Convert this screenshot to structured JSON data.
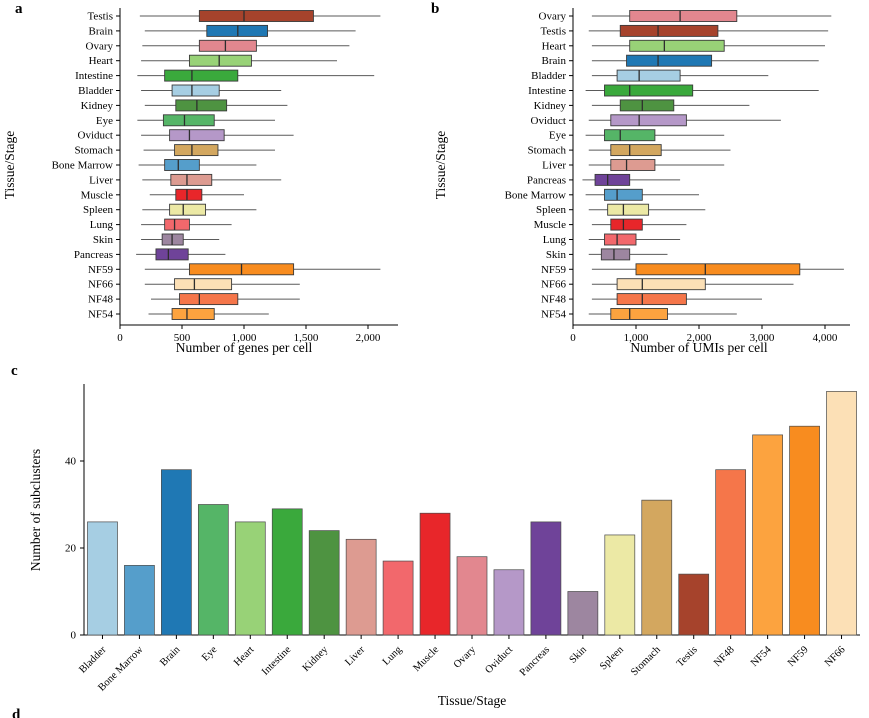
{
  "figure": {
    "panel_letters": {
      "a": "a",
      "b": "b",
      "c": "c",
      "d_partial": "d"
    }
  },
  "chart_data": [
    {
      "panel": "a",
      "type": "boxplot-horizontal",
      "xlabel": "Number of genes per cell",
      "ylabel": "Tissue/Stage",
      "xlim": [
        0,
        2200
      ],
      "x_ticks": [
        0,
        500,
        1000,
        1500,
        2000
      ],
      "x_tick_labels": [
        "0",
        "500",
        "1,000",
        "1,500",
        "2,000"
      ],
      "grid": false,
      "legend": "none",
      "series": [
        {
          "name": "Testis",
          "color": "#a6432c",
          "whisker_low": 160,
          "q1": 640,
          "median": 1000,
          "q3": 1560,
          "whisker_high": 2100
        },
        {
          "name": "Brain",
          "color": "#1f78b4",
          "whisker_low": 200,
          "q1": 700,
          "median": 950,
          "q3": 1190,
          "whisker_high": 1900
        },
        {
          "name": "Ovary",
          "color": "#e2878f",
          "whisker_low": 180,
          "q1": 640,
          "median": 850,
          "q3": 1100,
          "whisker_high": 1850
        },
        {
          "name": "Heart",
          "color": "#98d277",
          "whisker_low": 170,
          "q1": 560,
          "median": 800,
          "q3": 1060,
          "whisker_high": 1750
        },
        {
          "name": "Intestine",
          "color": "#3aa93c",
          "whisker_low": 140,
          "q1": 360,
          "median": 580,
          "q3": 950,
          "whisker_high": 2050
        },
        {
          "name": "Bladder",
          "color": "#a6cee3",
          "whisker_low": 170,
          "q1": 420,
          "median": 580,
          "q3": 800,
          "whisker_high": 1300
        },
        {
          "name": "Kidney",
          "color": "#4e9341",
          "whisker_low": 200,
          "q1": 450,
          "median": 620,
          "q3": 860,
          "whisker_high": 1350
        },
        {
          "name": "Eye",
          "color": "#55b567",
          "whisker_low": 140,
          "q1": 350,
          "median": 520,
          "q3": 760,
          "whisker_high": 1250
        },
        {
          "name": "Oviduct",
          "color": "#b598c8",
          "whisker_low": 170,
          "q1": 400,
          "median": 560,
          "q3": 840,
          "whisker_high": 1400
        },
        {
          "name": "Stomach",
          "color": "#d3a75f",
          "whisker_low": 190,
          "q1": 440,
          "median": 580,
          "q3": 790,
          "whisker_high": 1250
        },
        {
          "name": "Bone Marrow",
          "color": "#559ecb",
          "whisker_low": 150,
          "q1": 360,
          "median": 470,
          "q3": 640,
          "whisker_high": 1100
        },
        {
          "name": "Liver",
          "color": "#dd9b91",
          "whisker_low": 180,
          "q1": 410,
          "median": 540,
          "q3": 740,
          "whisker_high": 1300
        },
        {
          "name": "Muscle",
          "color": "#e8262a",
          "whisker_low": 240,
          "q1": 450,
          "median": 540,
          "q3": 660,
          "whisker_high": 1000
        },
        {
          "name": "Spleen",
          "color": "#ece9a5",
          "whisker_low": 180,
          "q1": 400,
          "median": 510,
          "q3": 690,
          "whisker_high": 1100
        },
        {
          "name": "Lung",
          "color": "#f2686c",
          "whisker_low": 170,
          "q1": 360,
          "median": 440,
          "q3": 560,
          "whisker_high": 900
        },
        {
          "name": "Skin",
          "color": "#9d86a0",
          "whisker_low": 170,
          "q1": 340,
          "median": 420,
          "q3": 510,
          "whisker_high": 800
        },
        {
          "name": "Pancreas",
          "color": "#6f4399",
          "whisker_low": 130,
          "q1": 290,
          "median": 390,
          "q3": 550,
          "whisker_high": 850
        },
        {
          "name": "NF59",
          "color": "#f88c1f",
          "whisker_low": 200,
          "q1": 560,
          "median": 980,
          "q3": 1400,
          "whisker_high": 2100
        },
        {
          "name": "NF66",
          "color": "#fce0b6",
          "whisker_low": 200,
          "q1": 440,
          "median": 600,
          "q3": 900,
          "whisker_high": 1450
        },
        {
          "name": "NF48",
          "color": "#f5764a",
          "whisker_low": 250,
          "q1": 480,
          "median": 640,
          "q3": 950,
          "whisker_high": 1450
        },
        {
          "name": "NF54",
          "color": "#fca33f",
          "whisker_low": 230,
          "q1": 420,
          "median": 540,
          "q3": 760,
          "whisker_high": 1200
        }
      ]
    },
    {
      "panel": "b",
      "type": "boxplot-horizontal",
      "xlabel": "Number of UMIs per cell",
      "ylabel": "Tissue/Stage",
      "xlim": [
        0,
        4400
      ],
      "x_ticks": [
        0,
        1000,
        2000,
        3000,
        4000
      ],
      "x_tick_labels": [
        "0",
        "1,000",
        "2,000",
        "3,000",
        "4,000"
      ],
      "grid": false,
      "legend": "none",
      "series": [
        {
          "name": "Ovary",
          "color": "#e2878f",
          "whisker_low": 300,
          "q1": 900,
          "median": 1700,
          "q3": 2600,
          "whisker_high": 4100
        },
        {
          "name": "Testis",
          "color": "#a6432c",
          "whisker_low": 250,
          "q1": 750,
          "median": 1350,
          "q3": 2300,
          "whisker_high": 4050
        },
        {
          "name": "Heart",
          "color": "#98d277",
          "whisker_low": 300,
          "q1": 900,
          "median": 1450,
          "q3": 2400,
          "whisker_high": 4000
        },
        {
          "name": "Brain",
          "color": "#1f78b4",
          "whisker_low": 300,
          "q1": 850,
          "median": 1350,
          "q3": 2200,
          "whisker_high": 3900
        },
        {
          "name": "Bladder",
          "color": "#a6cee3",
          "whisker_low": 300,
          "q1": 700,
          "median": 1050,
          "q3": 1700,
          "whisker_high": 3100
        },
        {
          "name": "Intestine",
          "color": "#3aa93c",
          "whisker_low": 200,
          "q1": 500,
          "median": 900,
          "q3": 1900,
          "whisker_high": 3900
        },
        {
          "name": "Kidney",
          "color": "#4e9341",
          "whisker_low": 300,
          "q1": 750,
          "median": 1100,
          "q3": 1600,
          "whisker_high": 2800
        },
        {
          "name": "Oviduct",
          "color": "#b598c8",
          "whisker_low": 250,
          "q1": 600,
          "median": 1050,
          "q3": 1800,
          "whisker_high": 3300
        },
        {
          "name": "Eye",
          "color": "#55b567",
          "whisker_low": 200,
          "q1": 500,
          "median": 750,
          "q3": 1300,
          "whisker_high": 2400
        },
        {
          "name": "Stomach",
          "color": "#d3a75f",
          "whisker_low": 250,
          "q1": 600,
          "median": 900,
          "q3": 1400,
          "whisker_high": 2500
        },
        {
          "name": "Liver",
          "color": "#dd9b91",
          "whisker_low": 250,
          "q1": 600,
          "median": 850,
          "q3": 1300,
          "whisker_high": 2400
        },
        {
          "name": "Pancreas",
          "color": "#6f4399",
          "whisker_low": 150,
          "q1": 350,
          "median": 550,
          "q3": 900,
          "whisker_high": 1700
        },
        {
          "name": "Bone Marrow",
          "color": "#559ecb",
          "whisker_low": 200,
          "q1": 500,
          "median": 700,
          "q3": 1100,
          "whisker_high": 2000
        },
        {
          "name": "Spleen",
          "color": "#ece9a5",
          "whisker_low": 250,
          "q1": 550,
          "median": 800,
          "q3": 1200,
          "whisker_high": 2100
        },
        {
          "name": "Muscle",
          "color": "#e8262a",
          "whisker_low": 300,
          "q1": 600,
          "median": 800,
          "q3": 1100,
          "whisker_high": 1800
        },
        {
          "name": "Lung",
          "color": "#f2686c",
          "whisker_low": 250,
          "q1": 500,
          "median": 700,
          "q3": 1000,
          "whisker_high": 1700
        },
        {
          "name": "Skin",
          "color": "#9d86a0",
          "whisker_low": 250,
          "q1": 450,
          "median": 650,
          "q3": 900,
          "whisker_high": 1500
        },
        {
          "name": "NF59",
          "color": "#f88c1f",
          "whisker_low": 300,
          "q1": 1000,
          "median": 2100,
          "q3": 3600,
          "whisker_high": 4300
        },
        {
          "name": "NF66",
          "color": "#fce0b6",
          "whisker_low": 300,
          "q1": 700,
          "median": 1100,
          "q3": 2100,
          "whisker_high": 3500
        },
        {
          "name": "NF48",
          "color": "#f5764a",
          "whisker_low": 300,
          "q1": 700,
          "median": 1100,
          "q3": 1800,
          "whisker_high": 3000
        },
        {
          "name": "NF54",
          "color": "#fca33f",
          "whisker_low": 250,
          "q1": 600,
          "median": 900,
          "q3": 1500,
          "whisker_high": 2600
        }
      ]
    },
    {
      "panel": "c",
      "type": "bar",
      "xlabel": "Tissue/Stage",
      "ylabel": "Number of subclusters",
      "ylim": [
        0,
        58
      ],
      "y_ticks": [
        0,
        20,
        40
      ],
      "y_tick_labels": [
        "0",
        "20",
        "40"
      ],
      "grid": false,
      "legend": "none",
      "categories": [
        "Bladder",
        "Bone Marrow",
        "Brain",
        "Eye",
        "Heart",
        "Intestine",
        "Kidney",
        "Liver",
        "Lung",
        "Muscle",
        "Ovary",
        "Oviduct",
        "Pancreas",
        "Skin",
        "Spleen",
        "Stomach",
        "Testis",
        "NF48",
        "NF54",
        "NF59",
        "NF66"
      ],
      "values": [
        26,
        16,
        38,
        30,
        26,
        29,
        24,
        22,
        17,
        28,
        18,
        15,
        26,
        10,
        23,
        31,
        14,
        38,
        46,
        48,
        56
      ],
      "colors": [
        "#a6cee3",
        "#559ecb",
        "#1f78b4",
        "#55b567",
        "#98d277",
        "#3aa93c",
        "#4e9341",
        "#dd9b91",
        "#f2686c",
        "#e8262a",
        "#e2878f",
        "#b598c8",
        "#6f4399",
        "#9d86a0",
        "#ece9a5",
        "#d3a75f",
        "#a6432c",
        "#f5764a",
        "#fca33f",
        "#f88c1f",
        "#fce0b6"
      ]
    }
  ]
}
